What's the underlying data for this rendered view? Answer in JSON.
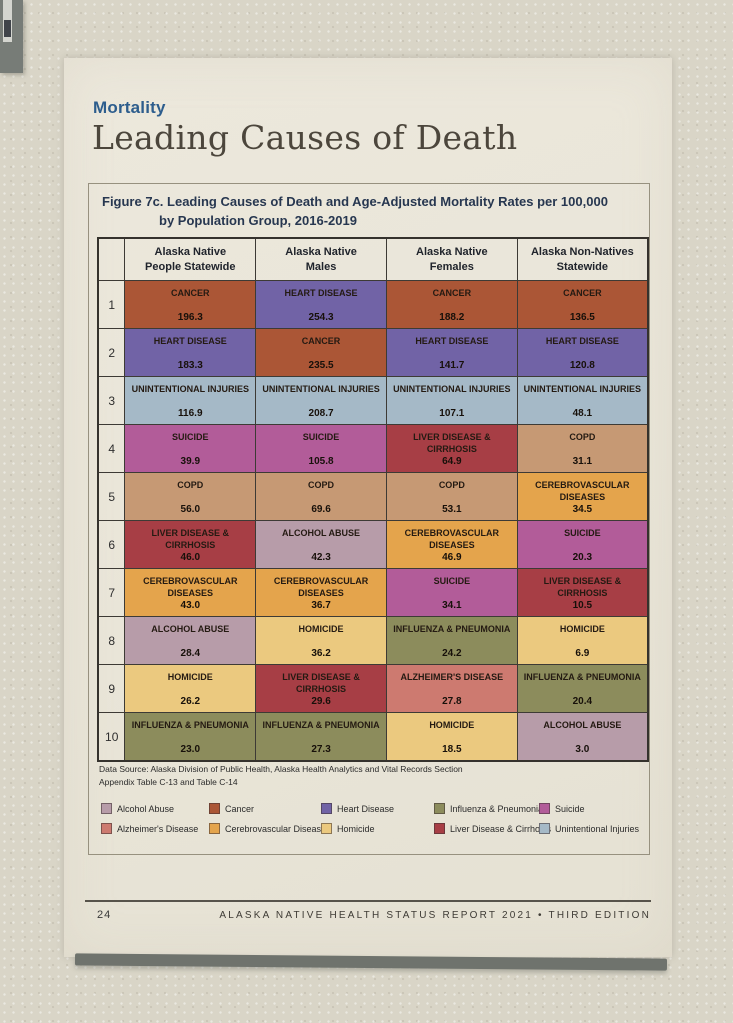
{
  "page": {
    "section_label": "Mortality",
    "title": "Leading Causes of Death",
    "figure": {
      "title_line1": "Figure 7c. Leading Causes of Death and Age-Adjusted Mortality Rates per 100,000",
      "title_line2": "by Population Group, 2016-2019"
    },
    "table": {
      "columns": [
        {
          "line1": "Alaska Native",
          "line2": "People Statewide"
        },
        {
          "line1": "Alaska Native",
          "line2": "Males"
        },
        {
          "line1": "Alaska Native",
          "line2": "Females"
        },
        {
          "line1": "Alaska Non-Natives",
          "line2": "Statewide"
        }
      ],
      "rows": [
        {
          "rank": "1",
          "cells": [
            {
              "cause": "CANCER",
              "rate": "196.3",
              "color": "cancer"
            },
            {
              "cause": "HEART DISEASE",
              "rate": "254.3",
              "color": "heart_disease"
            },
            {
              "cause": "CANCER",
              "rate": "188.2",
              "color": "cancer"
            },
            {
              "cause": "CANCER",
              "rate": "136.5",
              "color": "cancer"
            }
          ]
        },
        {
          "rank": "2",
          "cells": [
            {
              "cause": "HEART DISEASE",
              "rate": "183.3",
              "color": "heart_disease"
            },
            {
              "cause": "CANCER",
              "rate": "235.5",
              "color": "cancer"
            },
            {
              "cause": "HEART DISEASE",
              "rate": "141.7",
              "color": "heart_disease"
            },
            {
              "cause": "HEART DISEASE",
              "rate": "120.8",
              "color": "heart_disease"
            }
          ]
        },
        {
          "rank": "3",
          "cells": [
            {
              "cause": "UNINTENTIONAL INJURIES",
              "rate": "116.9",
              "color": "unintentional_injuries"
            },
            {
              "cause": "UNINTENTIONAL INJURIES",
              "rate": "208.7",
              "color": "unintentional_injuries"
            },
            {
              "cause": "UNINTENTIONAL INJURIES",
              "rate": "107.1",
              "color": "unintentional_injuries"
            },
            {
              "cause": "UNINTENTIONAL INJURIES",
              "rate": "48.1",
              "color": "unintentional_injuries"
            }
          ]
        },
        {
          "rank": "4",
          "cells": [
            {
              "cause": "SUICIDE",
              "rate": "39.9",
              "color": "suicide"
            },
            {
              "cause": "SUICIDE",
              "rate": "105.8",
              "color": "suicide"
            },
            {
              "cause": "LIVER DISEASE & CIRRHOSIS",
              "rate": "64.9",
              "color": "liver_disease_cirrhosis"
            },
            {
              "cause": "COPD",
              "rate": "31.1",
              "color": "copd"
            }
          ]
        },
        {
          "rank": "5",
          "cells": [
            {
              "cause": "COPD",
              "rate": "56.0",
              "color": "copd"
            },
            {
              "cause": "COPD",
              "rate": "69.6",
              "color": "copd"
            },
            {
              "cause": "COPD",
              "rate": "53.1",
              "color": "copd"
            },
            {
              "cause": "CEREBROVASCULAR DISEASES",
              "rate": "34.5",
              "color": "cerebrovascular_diseases"
            }
          ]
        },
        {
          "rank": "6",
          "cells": [
            {
              "cause": "LIVER DISEASE & CIRRHOSIS",
              "rate": "46.0",
              "color": "liver_disease_cirrhosis"
            },
            {
              "cause": "ALCOHOL ABUSE",
              "rate": "42.3",
              "color": "alcohol_abuse"
            },
            {
              "cause": "CEREBROVASCULAR DISEASES",
              "rate": "46.9",
              "color": "cerebrovascular_diseases"
            },
            {
              "cause": "SUICIDE",
              "rate": "20.3",
              "color": "suicide"
            }
          ]
        },
        {
          "rank": "7",
          "cells": [
            {
              "cause": "CEREBROVASCULAR DISEASES",
              "rate": "43.0",
              "color": "cerebrovascular_diseases"
            },
            {
              "cause": "CEREBROVASCULAR DISEASES",
              "rate": "36.7",
              "color": "cerebrovascular_diseases"
            },
            {
              "cause": "SUICIDE",
              "rate": "34.1",
              "color": "suicide"
            },
            {
              "cause": "LIVER DISEASE & CIRRHOSIS",
              "rate": "10.5",
              "color": "liver_disease_cirrhosis"
            }
          ]
        },
        {
          "rank": "8",
          "cells": [
            {
              "cause": "ALCOHOL ABUSE",
              "rate": "28.4",
              "color": "alcohol_abuse"
            },
            {
              "cause": "HOMICIDE",
              "rate": "36.2",
              "color": "homicide"
            },
            {
              "cause": "INFLUENZA & PNEUMONIA",
              "rate": "24.2",
              "color": "influenza_pneumonia"
            },
            {
              "cause": "HOMICIDE",
              "rate": "6.9",
              "color": "homicide"
            }
          ]
        },
        {
          "rank": "9",
          "cells": [
            {
              "cause": "HOMICIDE",
              "rate": "26.2",
              "color": "homicide"
            },
            {
              "cause": "LIVER DISEASE & CIRRHOSIS",
              "rate": "29.6",
              "color": "liver_disease_cirrhosis"
            },
            {
              "cause": "ALZHEIMER'S DISEASE",
              "rate": "27.8",
              "color": "alzheimers_disease"
            },
            {
              "cause": "INFLUENZA & PNEUMONIA",
              "rate": "20.4",
              "color": "influenza_pneumonia"
            }
          ]
        },
        {
          "rank": "10",
          "cells": [
            {
              "cause": "INFLUENZA & PNEUMONIA",
              "rate": "23.0",
              "color": "influenza_pneumonia"
            },
            {
              "cause": "INFLUENZA & PNEUMONIA",
              "rate": "27.3",
              "color": "influenza_pneumonia"
            },
            {
              "cause": "HOMICIDE",
              "rate": "18.5",
              "color": "homicide"
            },
            {
              "cause": "ALCOHOL ABUSE",
              "rate": "3.0",
              "color": "alcohol_abuse"
            }
          ]
        }
      ]
    },
    "source_line1": "Data Source: Alaska Division of Public Health, Alaska Health Analytics and Vital Records Section",
    "source_line2": "Appendix Table C-13 and Table C-14",
    "legend": [
      {
        "label": "Alcohol Abuse",
        "color": "alcohol_abuse"
      },
      {
        "label": "Cancer",
        "color": "cancer"
      },
      {
        "label": "Heart Disease",
        "color": "heart_disease"
      },
      {
        "label": "Influenza & Pneumonia",
        "color": "influenza_pneumonia"
      },
      {
        "label": "Suicide",
        "color": "suicide"
      },
      {
        "label": "Alzheimer's Disease",
        "color": "alzheimers_disease"
      },
      {
        "label": "Cerebrovascular Diseases",
        "color": "cerebrovascular_diseases"
      },
      {
        "label": "Homicide",
        "color": "homicide"
      },
      {
        "label": "Liver Disease & Cirrhosis",
        "color": "liver_disease_cirrhosis"
      },
      {
        "label": "Unintentional Injuries",
        "color": "unintentional_injuries"
      }
    ],
    "footer": {
      "page_number": "24",
      "report_title": "ALASKA NATIVE HEALTH STATUS REPORT 2021 • THIRD EDITION"
    }
  },
  "colors": {
    "cancer": "#ab5636",
    "heart_disease": "#7163a6",
    "unintentional_injuries": "#a5b9c7",
    "suicide": "#b25c99",
    "copd": "#c69974",
    "cerebrovascular_diseases": "#e4a44c",
    "liver_disease_cirrhosis": "#a73e45",
    "alcohol_abuse": "#b79ca9",
    "homicide": "#ebc97f",
    "influenza_pneumonia": "#8c8c5c",
    "alzheimers_disease": "#cd7a70"
  }
}
